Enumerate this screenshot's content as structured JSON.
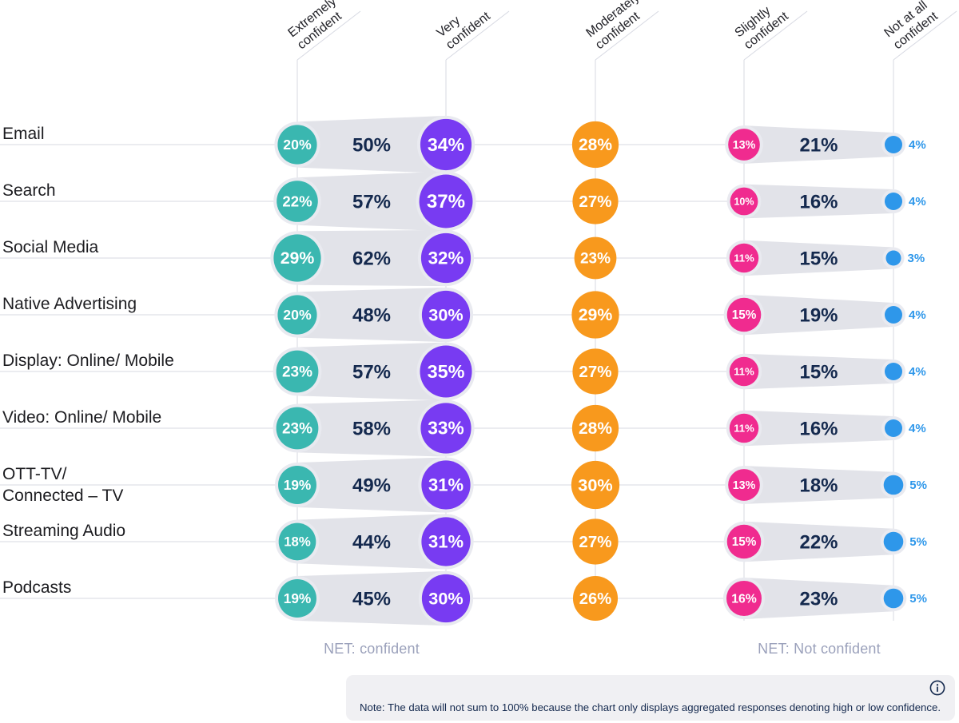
{
  "chart_data": {
    "type": "scatter",
    "title": "",
    "value_suffix": "%",
    "columns": [
      {
        "key": "extremely",
        "label": [
          "Extremely",
          "confident"
        ],
        "color": "#3ab7b0"
      },
      {
        "key": "very",
        "label": [
          "Very",
          "confident"
        ],
        "color": "#783bf2"
      },
      {
        "key": "moderately",
        "label": [
          "Moderately",
          "confident"
        ],
        "color": "#f8991d"
      },
      {
        "key": "slightly",
        "label": [
          "Slightly",
          "confident"
        ],
        "color": "#f02b8f"
      },
      {
        "key": "not_at_all",
        "label": [
          "Not at all",
          "confident"
        ],
        "color": "#2e97ea"
      }
    ],
    "rows": [
      {
        "label": [
          "Email"
        ],
        "extremely": 20,
        "net_confident": 50,
        "very": 34,
        "moderately": 28,
        "slightly": 13,
        "net_not_confident": 21,
        "not_at_all": 4
      },
      {
        "label": [
          "Search"
        ],
        "extremely": 22,
        "net_confident": 57,
        "very": 37,
        "moderately": 27,
        "slightly": 10,
        "net_not_confident": 16,
        "not_at_all": 4
      },
      {
        "label": [
          "Social Media"
        ],
        "extremely": 29,
        "net_confident": 62,
        "very": 32,
        "moderately": 23,
        "slightly": 11,
        "net_not_confident": 15,
        "not_at_all": 3
      },
      {
        "label": [
          "Native Advertising"
        ],
        "extremely": 20,
        "net_confident": 48,
        "very": 30,
        "moderately": 29,
        "slightly": 15,
        "net_not_confident": 19,
        "not_at_all": 4
      },
      {
        "label": [
          "Display: Online/ Mobile"
        ],
        "extremely": 23,
        "net_confident": 57,
        "very": 35,
        "moderately": 27,
        "slightly": 11,
        "net_not_confident": 15,
        "not_at_all": 4
      },
      {
        "label": [
          "Video: Online/ Mobile"
        ],
        "extremely": 23,
        "net_confident": 58,
        "very": 33,
        "moderately": 28,
        "slightly": 11,
        "net_not_confident": 16,
        "not_at_all": 4
      },
      {
        "label": [
          "OTT-TV/",
          "Connected – TV"
        ],
        "extremely": 19,
        "net_confident": 49,
        "very": 31,
        "moderately": 30,
        "slightly": 13,
        "net_not_confident": 18,
        "not_at_all": 5
      },
      {
        "label": [
          "Streaming Audio"
        ],
        "extremely": 18,
        "net_confident": 44,
        "very": 31,
        "moderately": 27,
        "slightly": 15,
        "net_not_confident": 22,
        "not_at_all": 5
      },
      {
        "label": [
          "Podcasts"
        ],
        "extremely": 19,
        "net_confident": 45,
        "very": 30,
        "moderately": 26,
        "slightly": 16,
        "net_not_confident": 23,
        "not_at_all": 5
      }
    ],
    "net_confident_label": "NET: confident",
    "net_not_confident_label": "NET: Not confident",
    "colors": {
      "band": "#e2e3e9",
      "band_ring": "#e9eaf0",
      "grid": "#d7d9e2",
      "net_value_text": "#14294e",
      "net_label_text": "#9ba1bb",
      "row_label_text": "#1c1c20",
      "header_text": "#232329",
      "dot_value_text": "#ffffff"
    }
  },
  "note": {
    "text": "Note: The data will not sum to 100% because the chart only displays aggregated responses denoting high or low confidence.",
    "info_icon": "info-circle-icon"
  }
}
